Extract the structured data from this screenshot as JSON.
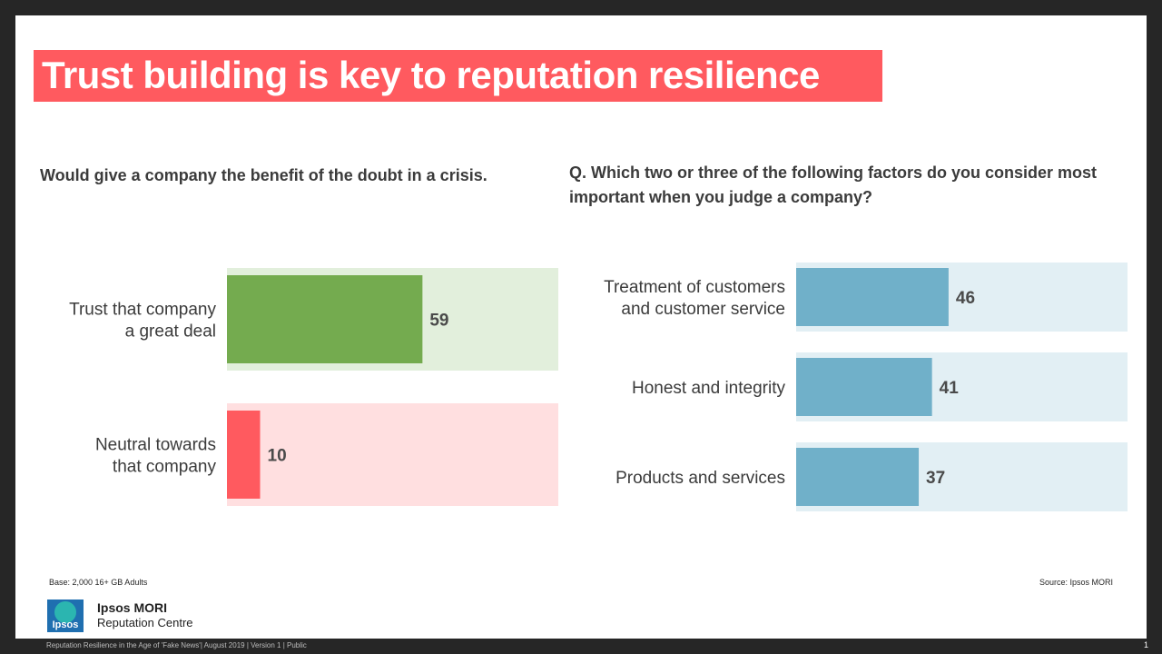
{
  "title": "Trust building is key to reputation resilience",
  "left_question": "Would give a company the benefit of the doubt in a crisis.",
  "right_question": "Q. Which two or three of the following factors do you consider most important when you judge a company?",
  "chart_data": [
    {
      "type": "bar",
      "orientation": "horizontal",
      "categories": [
        [
          "Trust that company",
          "a great deal"
        ],
        [
          "Neutral towards",
          "that company"
        ]
      ],
      "values": [
        59,
        10
      ],
      "xlim": [
        0,
        100
      ],
      "bar_colors": [
        "#74ab4f",
        "#ff5a5f"
      ],
      "track_colors": [
        "#e2efdc",
        "#ffdfe0"
      ]
    },
    {
      "type": "bar",
      "orientation": "horizontal",
      "categories": [
        [
          "Treatment of customers",
          "and customer service"
        ],
        [
          "Honest and integrity"
        ],
        [
          "Products and services"
        ]
      ],
      "values": [
        46,
        41,
        37
      ],
      "xlim": [
        0,
        100
      ],
      "bar_colors": [
        "#70b0c9",
        "#70b0c9",
        "#70b0c9"
      ],
      "track_colors": [
        "#e2eff4",
        "#e2eff4",
        "#e2eff4"
      ]
    }
  ],
  "footer": {
    "base": "Base: 2,000 16+ GB Adults",
    "source": "Source: Ipsos MORI",
    "brand_name": "Ipsos MORI",
    "brand_sub": "Reputation Centre",
    "logo_text": "Ipsos",
    "bottom_line": "Reputation  Resilience in the Age of 'Fake News'|  August 2019 |  Version 1 |  Public",
    "page": "1"
  }
}
